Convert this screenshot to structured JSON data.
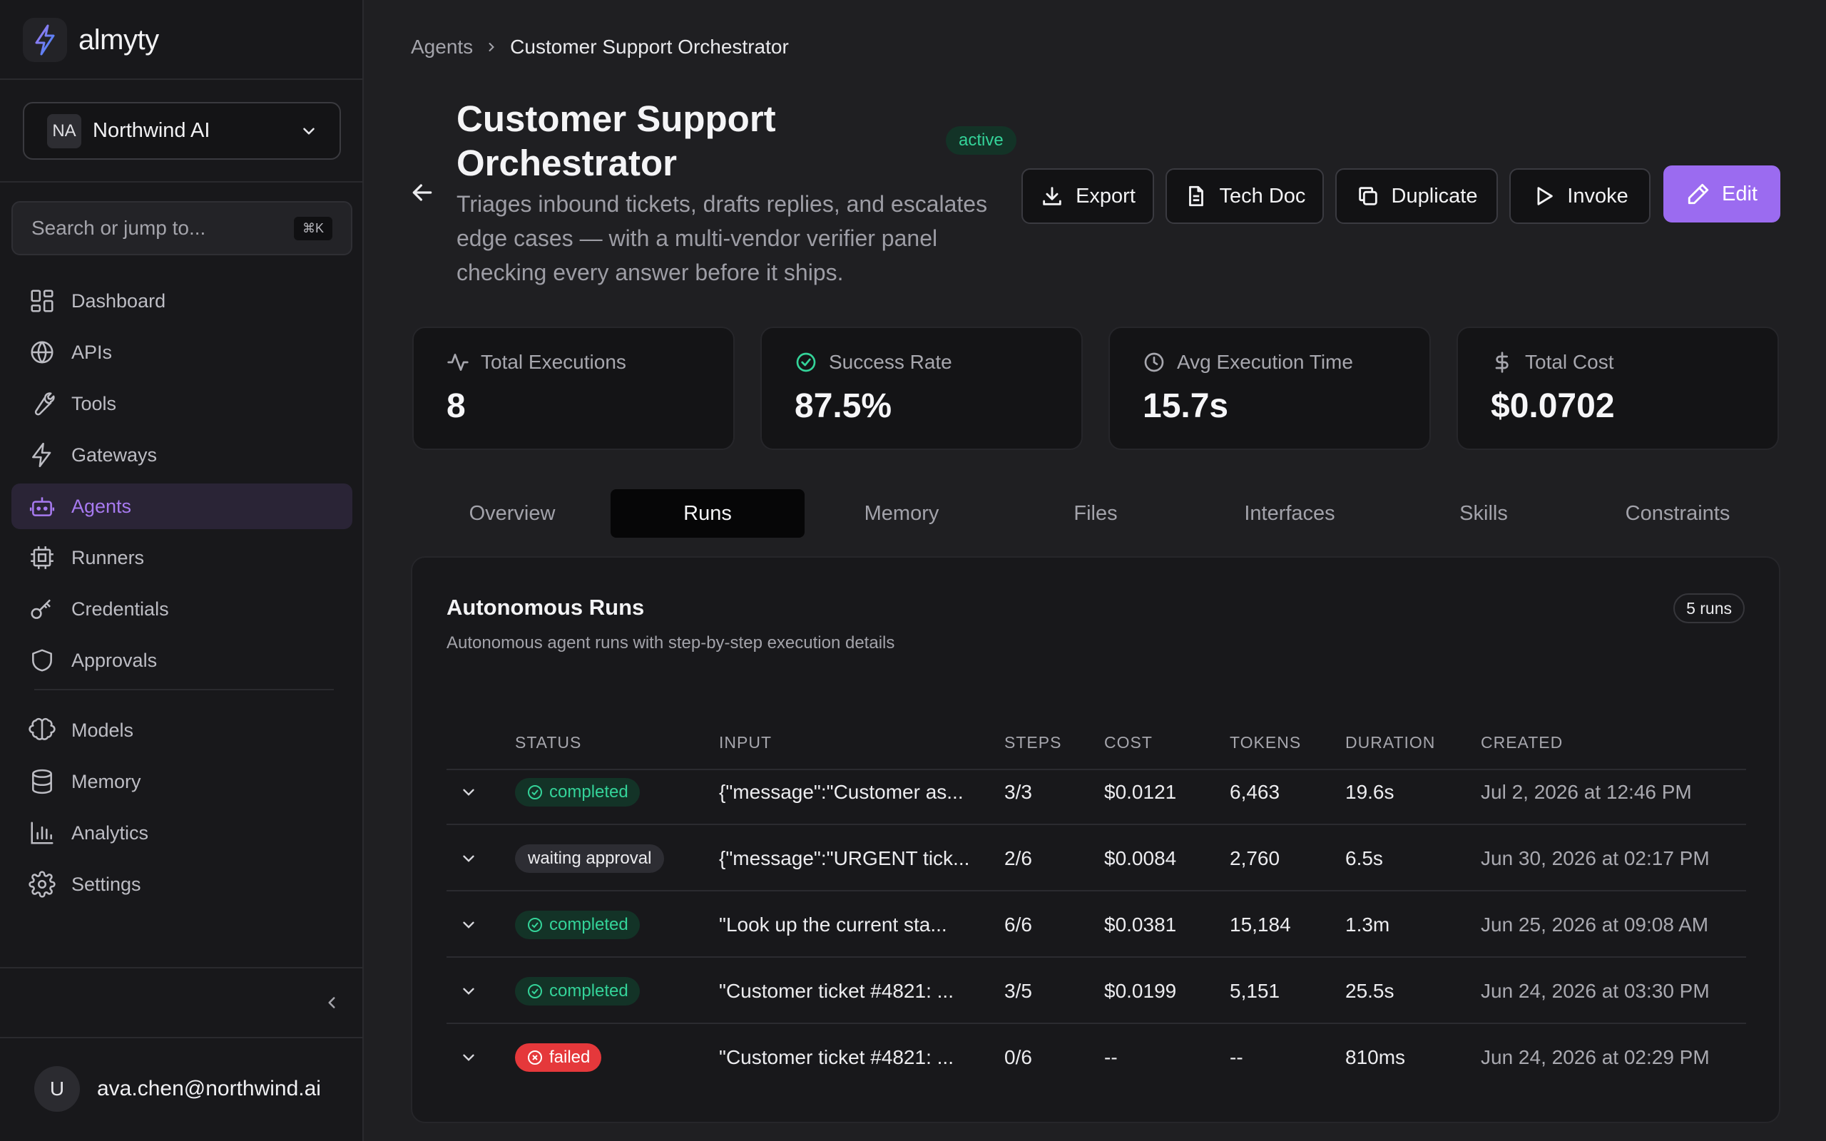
{
  "brand": {
    "name": "almyty"
  },
  "org": {
    "initials": "NA",
    "name": "Northwind AI"
  },
  "search": {
    "placeholder": "Search or jump to...",
    "shortcut": "⌘K"
  },
  "nav": {
    "primary": [
      {
        "label": "Dashboard",
        "icon": "dashboard-icon"
      },
      {
        "label": "APIs",
        "icon": "globe-icon"
      },
      {
        "label": "Tools",
        "icon": "wrench-icon"
      },
      {
        "label": "Gateways",
        "icon": "lightning-icon"
      },
      {
        "label": "Agents",
        "icon": "robot-icon",
        "active": true
      },
      {
        "label": "Runners",
        "icon": "cpu-icon"
      },
      {
        "label": "Credentials",
        "icon": "key-icon"
      },
      {
        "label": "Approvals",
        "icon": "shield-icon"
      }
    ],
    "secondary": [
      {
        "label": "Models",
        "icon": "brain-icon"
      },
      {
        "label": "Memory",
        "icon": "database-icon"
      },
      {
        "label": "Analytics",
        "icon": "bar-chart-icon"
      },
      {
        "label": "Settings",
        "icon": "gear-icon"
      }
    ]
  },
  "user": {
    "initial": "U",
    "email": "ava.chen@northwind.ai"
  },
  "breadcrumb": {
    "root": "Agents",
    "current": "Customer Support Orchestrator"
  },
  "agent": {
    "title": "Customer Support Orchestrator",
    "status": "active",
    "description": "Triages inbound tickets, drafts replies, and escalates edge cases — with a multi-vendor verifier panel checking every answer before it ships."
  },
  "actions": {
    "export": "Export",
    "tech_doc": "Tech Doc",
    "duplicate": "Duplicate",
    "invoke": "Invoke",
    "edit": "Edit"
  },
  "stats": [
    {
      "label": "Total Executions",
      "value": "8",
      "icon": "activity-icon"
    },
    {
      "label": "Success Rate",
      "value": "87.5%",
      "icon": "check-circle-icon",
      "icon_color": "#34d399"
    },
    {
      "label": "Avg Execution Time",
      "value": "15.7s",
      "icon": "clock-icon"
    },
    {
      "label": "Total Cost",
      "value": "$0.0702",
      "icon": "dollar-icon"
    }
  ],
  "tabs": [
    "Overview",
    "Runs",
    "Memory",
    "Files",
    "Interfaces",
    "Skills",
    "Constraints"
  ],
  "active_tab": "Runs",
  "runs": {
    "title": "Autonomous Runs",
    "subtitle": "Autonomous agent runs with step-by-step execution details",
    "count_badge": "5 runs",
    "columns": [
      "STATUS",
      "INPUT",
      "STEPS",
      "COST",
      "TOKENS",
      "DURATION",
      "CREATED"
    ],
    "rows": [
      {
        "status": "completed",
        "input": "{\"message\":\"Customer as...",
        "steps": "3/3",
        "cost": "$0.0121",
        "tokens": "6,463",
        "duration": "19.6s",
        "created": "Jul 2, 2026 at 12:46 PM"
      },
      {
        "status": "waiting approval",
        "input": "{\"message\":\"URGENT tick...",
        "steps": "2/6",
        "cost": "$0.0084",
        "tokens": "2,760",
        "duration": "6.5s",
        "created": "Jun 30, 2026 at 02:17 PM"
      },
      {
        "status": "completed",
        "input": "\"Look up the current sta...",
        "steps": "6/6",
        "cost": "$0.0381",
        "tokens": "15,184",
        "duration": "1.3m",
        "created": "Jun 25, 2026 at 09:08 AM"
      },
      {
        "status": "completed",
        "input": "\"Customer ticket #4821: ...",
        "steps": "3/5",
        "cost": "$0.0199",
        "tokens": "5,151",
        "duration": "25.5s",
        "created": "Jun 24, 2026 at 03:30 PM"
      },
      {
        "status": "failed",
        "input": "\"Customer ticket #4821: ...",
        "steps": "0/6",
        "cost": "--",
        "tokens": "--",
        "duration": "810ms",
        "created": "Jun 24, 2026 at 02:29 PM"
      }
    ]
  },
  "colors": {
    "accent": "#9b6bf0",
    "success": "#34d399",
    "danger": "#e5383b"
  }
}
